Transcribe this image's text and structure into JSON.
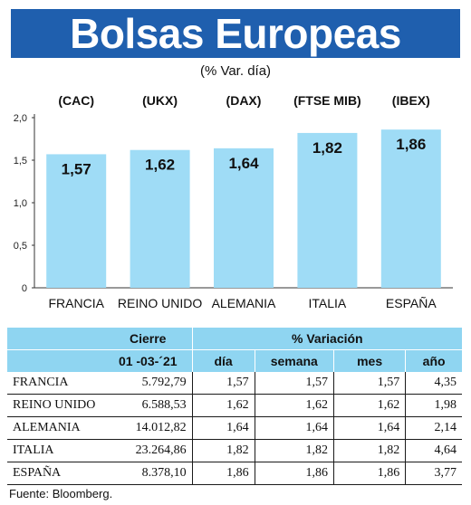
{
  "title": "Bolsas Europeas",
  "subtitle": "(% Var. día)",
  "chart_data": {
    "type": "bar",
    "categories": [
      "FRANCIA",
      "REINO UNIDO",
      "ALEMANIA",
      "ITALIA",
      "ESPAÑA"
    ],
    "indices": [
      "(CAC)",
      "(UKX)",
      "(DAX)",
      "(FTSE MIB)",
      "(IBEX)"
    ],
    "values": [
      1.57,
      1.62,
      1.64,
      1.82,
      1.86
    ],
    "value_labels": [
      "1,57",
      "1,62",
      "1,64",
      "1,82",
      "1,86"
    ],
    "ylim": [
      0,
      2.0
    ],
    "yticks": [
      "0",
      "0,5",
      "1,0",
      "1,5",
      "2,0"
    ],
    "bar_color": "#9fdcf6"
  },
  "table": {
    "cierre_label": "Cierre",
    "date_label": "01 -03-´21",
    "variacion_label": "% Variación",
    "col_dia": "día",
    "col_semana": "semana",
    "col_mes": "mes",
    "col_ano": "año",
    "rows": [
      {
        "name": "FRANCIA",
        "cierre": "5.792,79",
        "dia": "1,57",
        "semana": "1,57",
        "mes": "1,57",
        "ano": "4,35"
      },
      {
        "name": "REINO UNIDO",
        "cierre": "6.588,53",
        "dia": "1,62",
        "semana": "1,62",
        "mes": "1,62",
        "ano": "1,98"
      },
      {
        "name": "ALEMANIA",
        "cierre": "14.012,82",
        "dia": "1,64",
        "semana": "1,64",
        "mes": "1,64",
        "ano": "2,14"
      },
      {
        "name": "ITALIA",
        "cierre": "23.264,86",
        "dia": "1,82",
        "semana": "1,82",
        "mes": "1,82",
        "ano": "4,64"
      },
      {
        "name": "ESPAÑA",
        "cierre": "8.378,10",
        "dia": "1,86",
        "semana": "1,86",
        "mes": "1,86",
        "ano": "3,77"
      }
    ]
  },
  "source": "Fuente: Bloomberg."
}
